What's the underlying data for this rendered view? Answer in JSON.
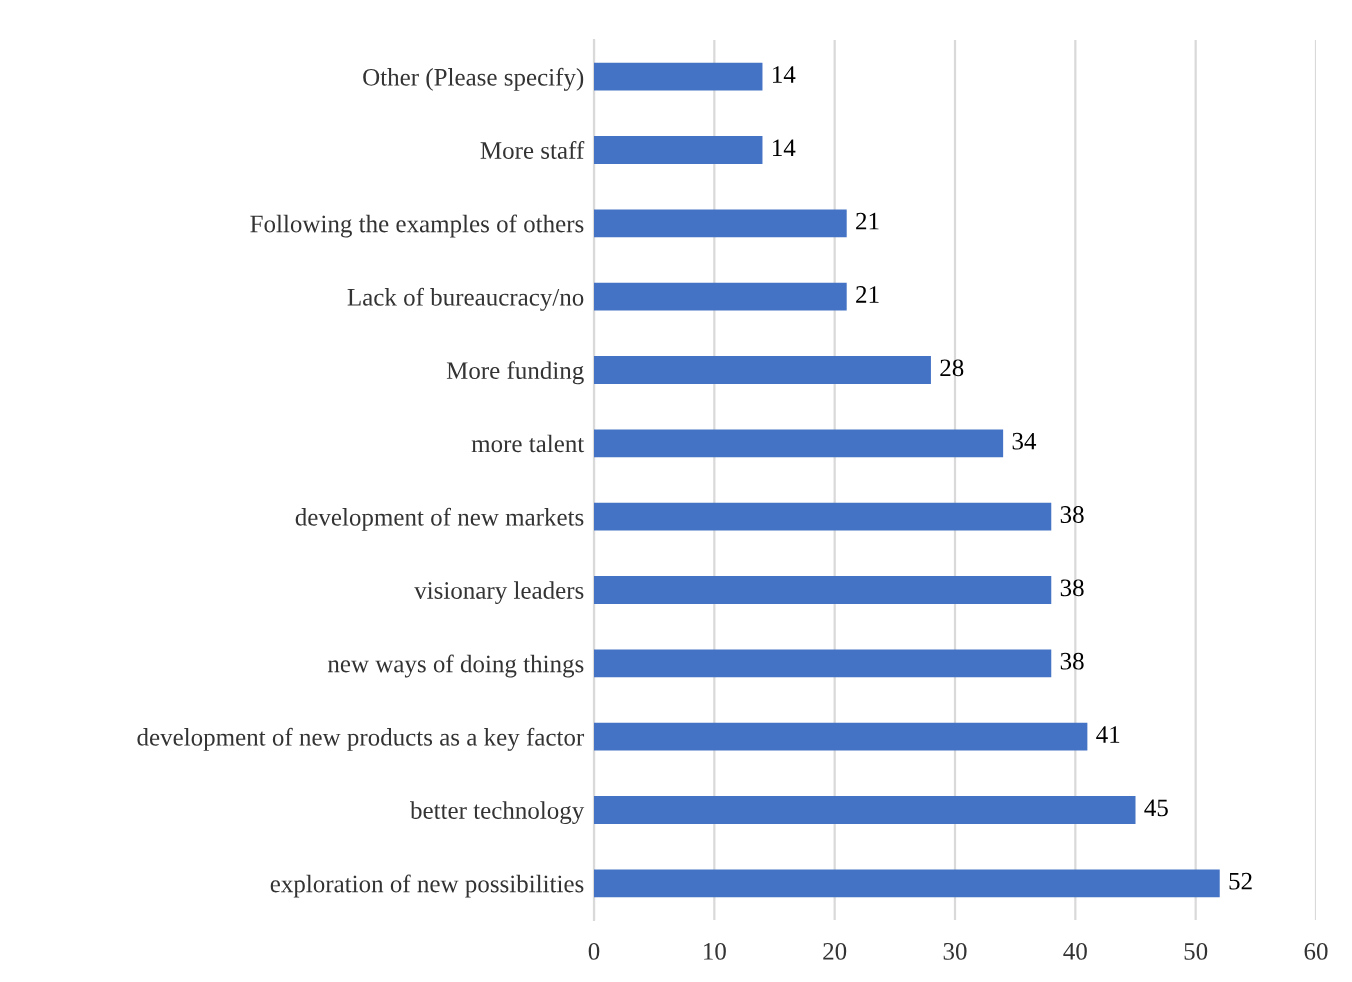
{
  "chart_data": {
    "type": "bar",
    "orientation": "horizontal",
    "categories": [
      "Other (Please specify)",
      "More staff",
      "Following the examples of others",
      "Lack of bureaucracy/no",
      "More funding",
      "more talent",
      "development of new markets",
      "visionary leaders",
      "new ways of doing things",
      "development of new products as a key factor",
      "better technology",
      "exploration of new possibilities"
    ],
    "values": [
      14,
      14,
      21,
      21,
      28,
      34,
      38,
      38,
      38,
      41,
      45,
      52
    ],
    "color": "#4472c4",
    "xlim": [
      0,
      60
    ],
    "xticks": [
      0,
      10,
      20,
      30,
      40,
      50,
      60
    ],
    "grid": "x",
    "data_labels": true
  }
}
